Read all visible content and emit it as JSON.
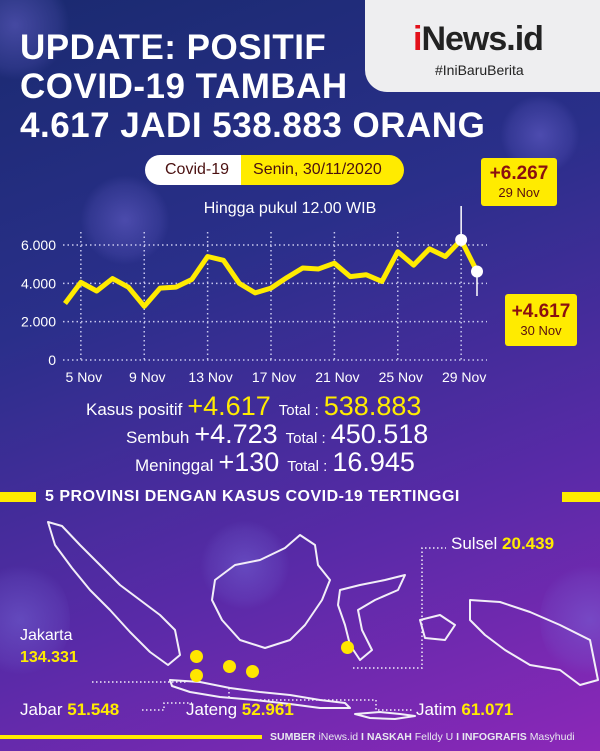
{
  "header": {
    "title_lines": [
      "UPDATE: POSITIF",
      "COVID-19 TAMBAH",
      "4.617 JADI 538.883 ORANG"
    ],
    "logo_i": "i",
    "logo_rest": "News.id",
    "tagline": "#IniBaruBerita"
  },
  "date_pill": {
    "label": "Covid-19",
    "date": "Senin, 30/11/2020"
  },
  "subtitle": "Hingga pukul 12.00 WIB",
  "chart_data": {
    "type": "line",
    "x": [
      "4 Nov",
      "5 Nov",
      "6 Nov",
      "7 Nov",
      "8 Nov",
      "9 Nov",
      "10 Nov",
      "11 Nov",
      "12 Nov",
      "13 Nov",
      "14 Nov",
      "15 Nov",
      "16 Nov",
      "17 Nov",
      "18 Nov",
      "19 Nov",
      "20 Nov",
      "21 Nov",
      "22 Nov",
      "23 Nov",
      "24 Nov",
      "25 Nov",
      "26 Nov",
      "27 Nov",
      "28 Nov",
      "29 Nov",
      "30 Nov"
    ],
    "values": [
      2950,
      4050,
      3600,
      4250,
      3800,
      2800,
      3750,
      3800,
      4200,
      5400,
      5200,
      4000,
      3500,
      3750,
      4300,
      4800,
      4750,
      5050,
      4350,
      4450,
      4100,
      5650,
      4950,
      5800,
      5400,
      6267,
      4617
    ],
    "x_tick_labels": [
      "5 Nov",
      "9 Nov",
      "13 Nov",
      "17 Nov",
      "21 Nov",
      "25 Nov",
      "29 Nov"
    ],
    "y_tick_labels": [
      "0",
      "2.000",
      "4.000",
      "6.000"
    ],
    "y_ticks": [
      0,
      2000,
      4000,
      6000
    ],
    "ylim": [
      0,
      6500
    ],
    "grid": true,
    "line_color": "#ffeb00",
    "annotations": [
      {
        "value": "+6.267",
        "date": "29 Nov"
      },
      {
        "value": "+4.617",
        "date": "30 Nov"
      }
    ]
  },
  "stats": [
    {
      "label": "Kasus positif",
      "change": "+4.617",
      "total_label": "Total :",
      "total": "538.883"
    },
    {
      "label": "Sembuh",
      "change": "+4.723",
      "total_label": "Total :",
      "total": "450.518"
    },
    {
      "label": "Meninggal",
      "change": "+130",
      "total_label": "Total :",
      "total": "16.945"
    }
  ],
  "provinces_title": "5 PROVINSI DENGAN KASUS COVID-19 TERTINGGI",
  "provinces": [
    {
      "name": "Jakarta",
      "value": "134.331"
    },
    {
      "name": "Jabar",
      "value": "51.548"
    },
    {
      "name": "Jateng",
      "value": "52.961"
    },
    {
      "name": "Jatim",
      "value": "61.071"
    },
    {
      "name": "Sulsel",
      "value": "20.439"
    }
  ],
  "footer": {
    "sumber_label": "SUMBER",
    "sumber": "iNews.id",
    "naskah_label": "NASKAH",
    "naskah": "Felldy U",
    "infografis_label": "INFOGRAFIS",
    "infografis": "Masyhudi",
    "sep": "I"
  },
  "colors": {
    "accent": "#ffeb00",
    "brand_red": "#e3101a",
    "bg_top": "#1a2a70",
    "bg_bottom": "#8c28b8"
  }
}
